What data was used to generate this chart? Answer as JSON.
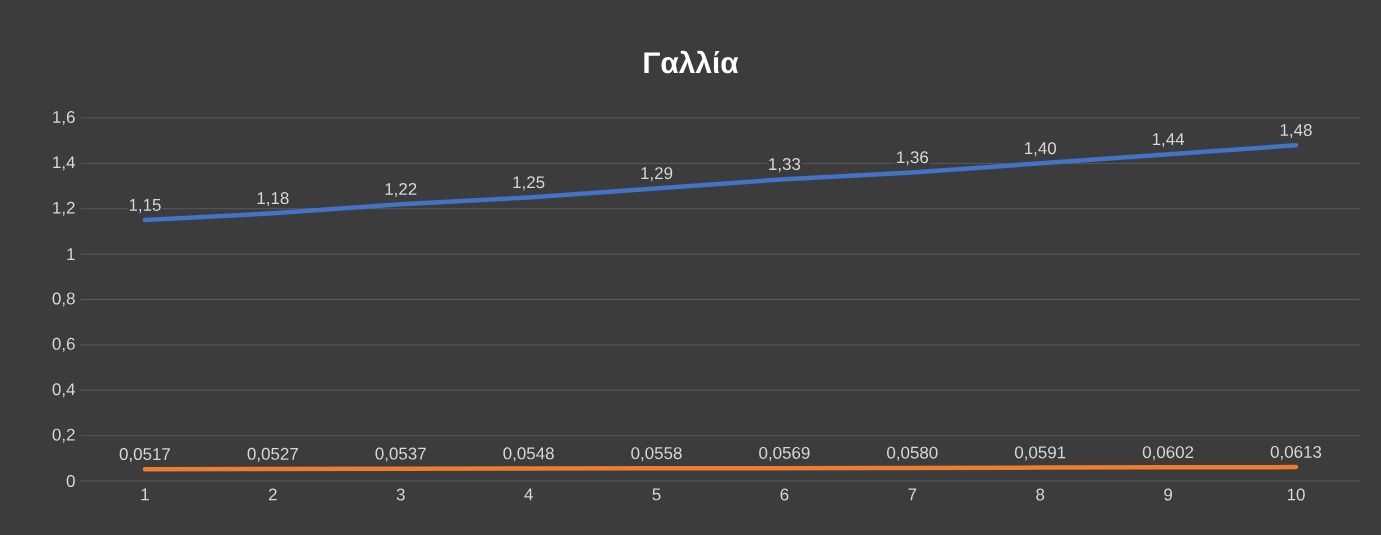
{
  "chart_data": {
    "type": "line",
    "title": "Γαλλία",
    "categories": [
      "1",
      "2",
      "3",
      "4",
      "5",
      "6",
      "7",
      "8",
      "9",
      "10"
    ],
    "series": [
      {
        "color": "#4472c4",
        "values": [
          1.15,
          1.18,
          1.22,
          1.25,
          1.29,
          1.33,
          1.36,
          1.4,
          1.44,
          1.48
        ],
        "value_labels": [
          "1,15",
          "1,18",
          "1,22",
          "1,25",
          "1,29",
          "1,33",
          "1,36",
          "1,40",
          "1,44",
          "1,48"
        ]
      },
      {
        "color": "#ed7d31",
        "values": [
          0.0517,
          0.0527,
          0.0537,
          0.0548,
          0.0558,
          0.0569,
          0.058,
          0.0591,
          0.0602,
          0.0613
        ],
        "value_labels": [
          "0,0517",
          "0,0527",
          "0,0537",
          "0,0548",
          "0,0558",
          "0,0569",
          "0,0580",
          "0,0591",
          "0,0602",
          "0,0613"
        ]
      }
    ],
    "ylim": [
      0,
      1.6
    ],
    "yticks": [
      0,
      {
        "value": 0.2,
        "label": "0,2"
      },
      {
        "value": 0.4,
        "label": "0,4"
      },
      {
        "value": 0.6,
        "label": "0,6"
      },
      {
        "value": 0.8,
        "label": "0,8"
      },
      1,
      {
        "value": 1.2,
        "label": "1,2"
      },
      {
        "value": 1.4,
        "label": "1,4"
      },
      {
        "value": 1.6,
        "label": "1,6"
      }
    ],
    "grid": "y",
    "marker": "none",
    "line_style": "solid"
  }
}
